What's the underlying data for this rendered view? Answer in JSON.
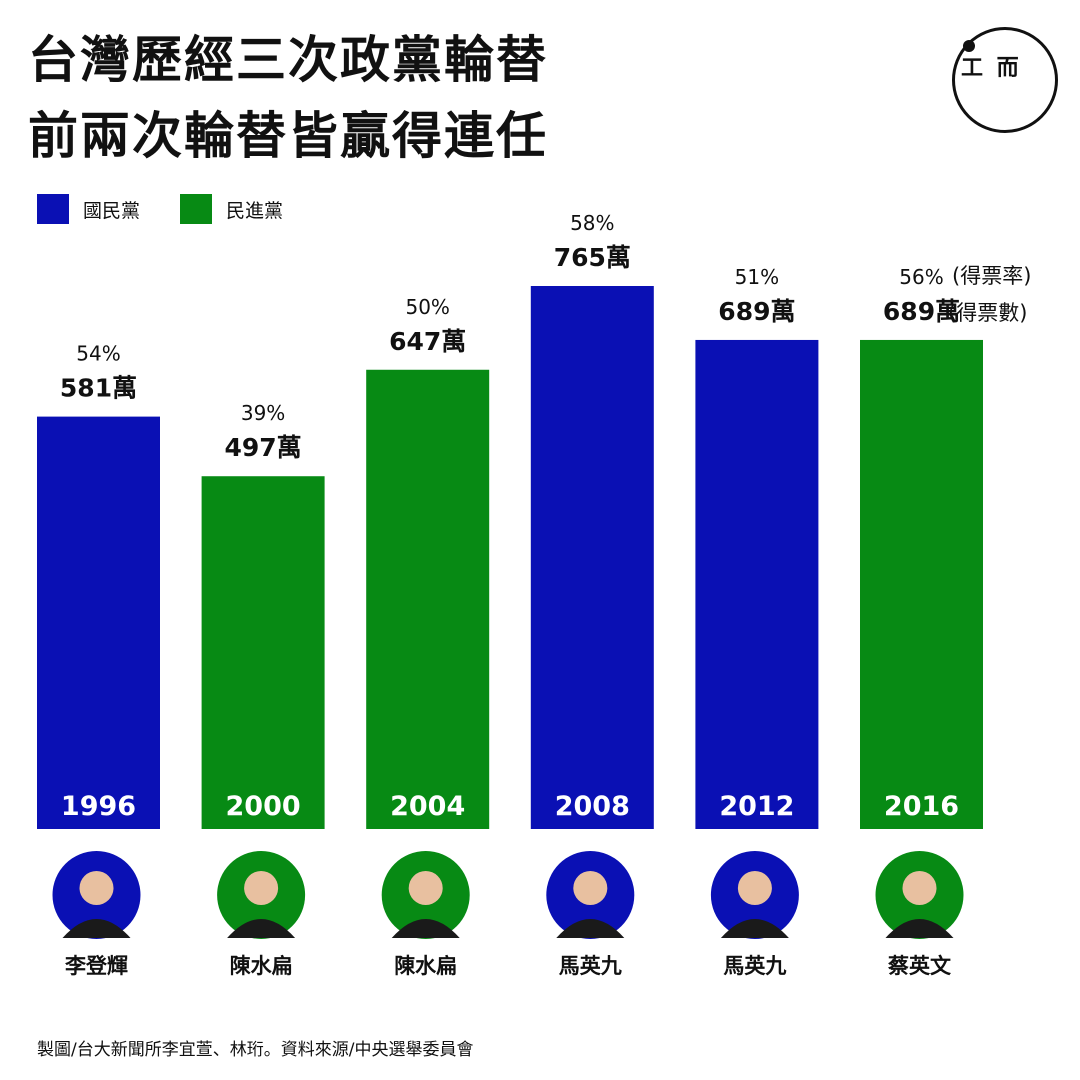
{
  "title": [
    "台灣歷經三次政黨輪替",
    "前兩次輪替皆贏得連任"
  ],
  "logo": "端",
  "colors": {
    "kmt": "#0a10b4",
    "dpp": "#078a14"
  },
  "legend": [
    {
      "label": "國民黨",
      "party": "kmt"
    },
    {
      "label": "民進黨",
      "party": "dpp"
    }
  ],
  "annotations": {
    "rate": "(得票率)",
    "votes": "(得票數)"
  },
  "chart_data": {
    "type": "bar",
    "title": "台灣歷經三次政黨輪替 前兩次輪替皆贏得連任",
    "categories": [
      "1996",
      "2000",
      "2004",
      "2008",
      "2012",
      "2016"
    ],
    "values": [
      581,
      497,
      647,
      765,
      689,
      689
    ],
    "value_labels": [
      "581萬",
      "497萬",
      "647萬",
      "765萬",
      "689萬",
      "689萬"
    ],
    "percent_labels": [
      "54%",
      "39%",
      "50%",
      "58%",
      "51%",
      "56%"
    ],
    "parties": [
      "kmt",
      "dpp",
      "dpp",
      "kmt",
      "kmt",
      "dpp"
    ],
    "candidates": [
      "李登輝",
      "陳水扁",
      "陳水扁",
      "馬英九",
      "馬英九",
      "蔡英文"
    ],
    "unit": "萬票",
    "ylim": [
      0,
      765
    ],
    "grid": false,
    "legend_position": "top-left"
  },
  "footer": "製圖/台大新聞所李宜萱、林珩。資料來源/中央選舉委員會"
}
